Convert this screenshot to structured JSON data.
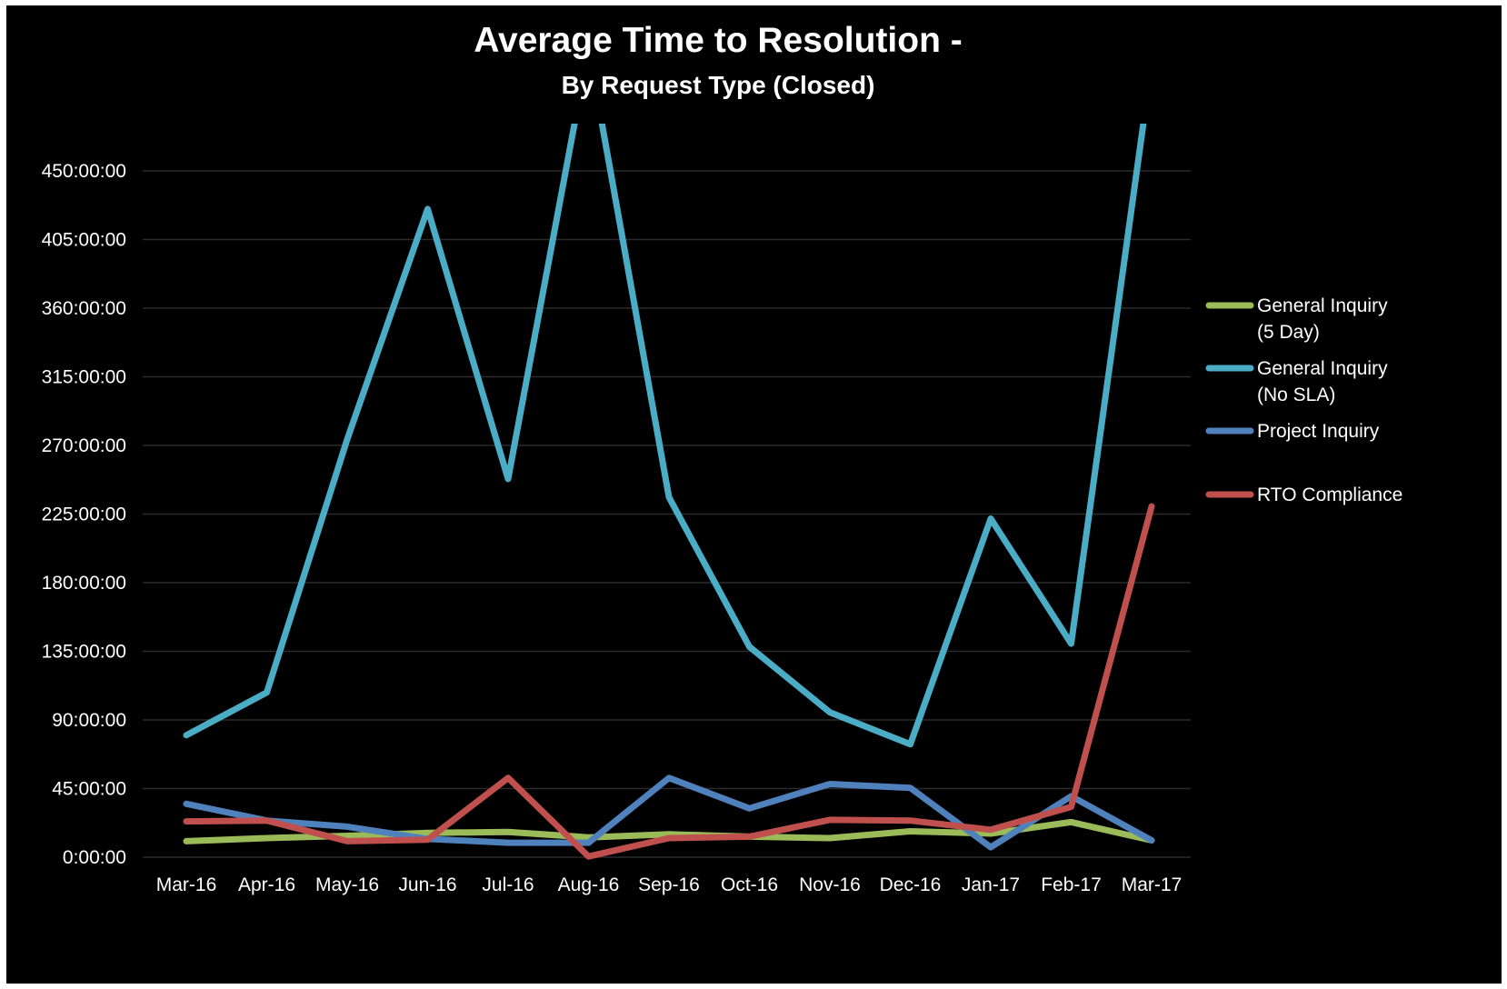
{
  "chart_data": {
    "type": "line",
    "title": "Average Time to Resolution -",
    "subtitle": "By Request Type (Closed)",
    "xlabel": "",
    "ylabel": "",
    "categories": [
      "Mar-16",
      "Apr-16",
      "May-16",
      "Jun-16",
      "Jul-16",
      "Aug-16",
      "Sep-16",
      "Oct-16",
      "Nov-16",
      "Dec-16",
      "Jan-17",
      "Feb-17",
      "Mar-17"
    ],
    "y_unit": "hours",
    "y_ticks": [
      0,
      45,
      90,
      135,
      180,
      225,
      270,
      315,
      360,
      405,
      450
    ],
    "y_tick_labels": [
      "0:00:00",
      "45:00:00",
      "90:00:00",
      "135:00:00",
      "180:00:00",
      "225:00:00",
      "270:00:00",
      "315:00:00",
      "360:00:00",
      "405:00:00",
      "450:00:00"
    ],
    "ylim": [
      0,
      482
    ],
    "grid": true,
    "legend_position": "right",
    "background": "#000000",
    "series": [
      {
        "name": "General Inquiry (5 Day)",
        "legend_lines": [
          "General Inquiry",
          "(5 Day)"
        ],
        "color": "#9bbb59",
        "values": [
          10.5,
          12.5,
          14,
          16,
          16.5,
          13,
          15,
          13.5,
          12.5,
          17,
          15.5,
          23,
          11
        ]
      },
      {
        "name": "General Inquiry (No SLA)",
        "legend_lines": [
          "General Inquiry",
          "(No SLA)"
        ],
        "color": "#4bacc6",
        "values": [
          80,
          108,
          274,
          425,
          248,
          530,
          236,
          138,
          95,
          74,
          222,
          140,
          520
        ]
      },
      {
        "name": "Project Inquiry",
        "legend_lines": [
          "Project Inquiry"
        ],
        "color": "#4f81bd",
        "values": [
          35,
          24,
          20,
          12,
          9.5,
          9.5,
          52,
          32,
          48,
          45.5,
          6.5,
          40,
          11
        ]
      },
      {
        "name": "RTO Compliance",
        "legend_lines": [
          "RTO Compliance"
        ],
        "color": "#c0504d",
        "values": [
          23.5,
          24,
          10.5,
          11.5,
          52,
          0.5,
          12.5,
          13.5,
          24.5,
          24,
          18,
          33,
          230
        ]
      }
    ]
  }
}
